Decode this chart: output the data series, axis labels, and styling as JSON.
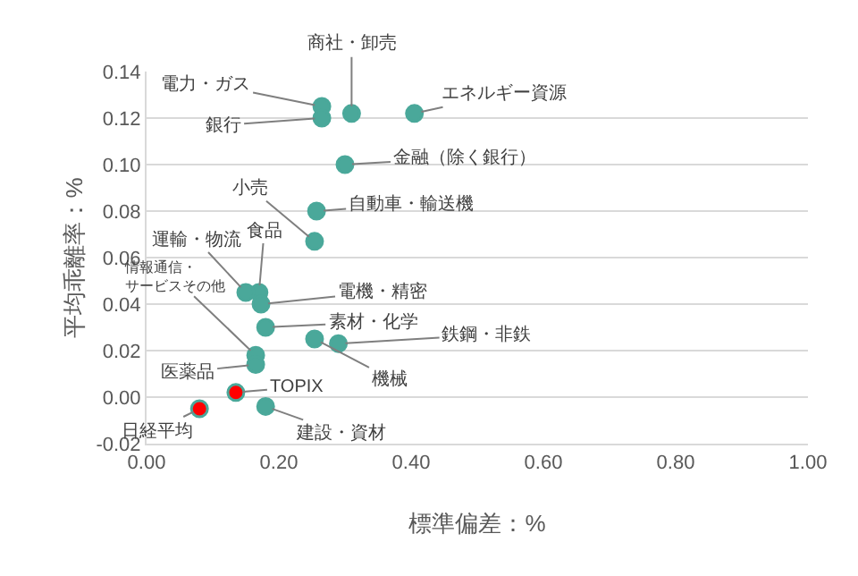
{
  "chart_data": {
    "type": "scatter",
    "xlabel": "標準偏差：%",
    "ylabel": "平均乖離率：%",
    "x": [
      0.265,
      0.265,
      0.31,
      0.405,
      0.3,
      0.257,
      0.254,
      0.17,
      0.15,
      0.173,
      0.18,
      0.165,
      0.165,
      0.254,
      0.29,
      0.135,
      0.08,
      0.18
    ],
    "values": [
      0.125,
      0.12,
      0.122,
      0.122,
      0.1,
      0.08,
      0.067,
      0.045,
      0.045,
      0.04,
      0.03,
      0.018,
      0.014,
      0.025,
      0.023,
      0.002,
      -0.005,
      -0.004
    ],
    "colors": [
      "#4aa89a",
      "#4aa89a",
      "#4aa89a",
      "#4aa89a",
      "#4aa89a",
      "#4aa89a",
      "#4aa89a",
      "#4aa89a",
      "#4aa89a",
      "#4aa89a",
      "#4aa89a",
      "#4aa89a",
      "#4aa89a",
      "#4aa89a",
      "#4aa89a",
      "#ff0000",
      "#ff0000",
      "#4aa89a"
    ],
    "marker": "circle",
    "grid": "y",
    "xlim": [
      0,
      1
    ],
    "ylim": [
      -0.02,
      0.14
    ],
    "xticks": [
      {
        "value": 0,
        "label": "0.00"
      },
      {
        "value": 0.2,
        "label": "0.20"
      },
      {
        "value": 0.4,
        "label": "0.40"
      },
      {
        "value": 0.6,
        "label": "0.60"
      },
      {
        "value": 0.8,
        "label": "0.80"
      },
      {
        "value": 1,
        "label": "1.00"
      }
    ],
    "yticks": [
      {
        "value": -0.02,
        "label": "-0.02"
      },
      {
        "value": 0,
        "label": "0.00"
      },
      {
        "value": 0.02,
        "label": "0.02"
      },
      {
        "value": 0.04,
        "label": "0.04"
      },
      {
        "value": 0.06,
        "label": "0.06"
      },
      {
        "value": 0.08,
        "label": "0.08"
      },
      {
        "value": 0.1,
        "label": "0.10"
      },
      {
        "value": 0.12,
        "label": "0.12"
      },
      {
        "value": 0.14,
        "label": "0.14"
      }
    ],
    "annotations": [
      {
        "text": "電力・ガス",
        "x": 0.265,
        "y": 0.125
      },
      {
        "text": "銀行",
        "x": 0.265,
        "y": 0.12
      },
      {
        "text": "商社・卸売",
        "x": 0.31,
        "y": 0.122
      },
      {
        "text": "エネルギー資源",
        "x": 0.405,
        "y": 0.122
      },
      {
        "text": "金融（除く銀行）",
        "x": 0.3,
        "y": 0.1
      },
      {
        "text": "自動車・輸送機",
        "x": 0.257,
        "y": 0.08
      },
      {
        "text": "小売",
        "x": 0.254,
        "y": 0.067
      },
      {
        "text": "食品",
        "x": 0.17,
        "y": 0.045
      },
      {
        "text": "運輸・物流",
        "x": 0.15,
        "y": 0.045
      },
      {
        "text": "電機・精密",
        "x": 0.173,
        "y": 0.04
      },
      {
        "text": "素材・化学",
        "x": 0.18,
        "y": 0.03
      },
      {
        "text": "情報通信・サービスその他",
        "x": 0.165,
        "y": 0.018
      },
      {
        "text": "医薬品",
        "x": 0.165,
        "y": 0.014
      },
      {
        "text": "機械",
        "x": 0.254,
        "y": 0.025
      },
      {
        "text": "鉄鋼・非鉄",
        "x": 0.29,
        "y": 0.023
      },
      {
        "text": "TOPIX",
        "x": 0.135,
        "y": 0.002
      },
      {
        "text": "日経平均",
        "x": 0.08,
        "y": -0.005
      },
      {
        "text": "建設・資材",
        "x": 0.18,
        "y": -0.004
      }
    ]
  }
}
